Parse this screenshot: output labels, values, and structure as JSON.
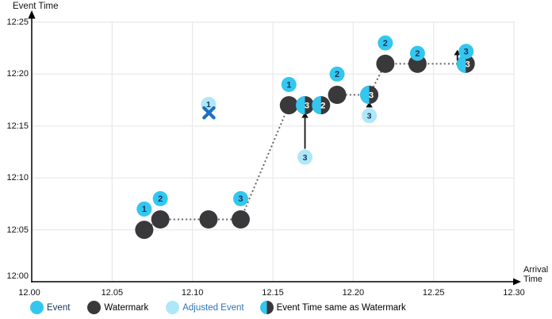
{
  "legend": {
    "items": [
      {
        "label": "Event",
        "type": "event"
      },
      {
        "label": "Watermark",
        "type": "watermark"
      },
      {
        "label": "Adjusted Event",
        "type": "adjusted-event"
      },
      {
        "label": "Event Time same as Watermark",
        "type": "event-time-same-as-watermark"
      }
    ]
  },
  "chart_data": {
    "type": "scatter",
    "title": "",
    "xlabel": "Arrival Time",
    "ylabel": "Event Time",
    "xlabel_lines": [
      "Arrival",
      "Time"
    ],
    "x_ticks": [
      "12.00",
      "12.05",
      "12.10",
      "12.15",
      "12.20",
      "12.25",
      "12.30"
    ],
    "y_ticks": [
      "12:00",
      "12:05",
      "12:10",
      "12:15",
      "12:20",
      "12:25"
    ],
    "x_tick_minutes": [
      0,
      5,
      10,
      15,
      20,
      25,
      30
    ],
    "y_tick_minutes": [
      0,
      5,
      10,
      15,
      20,
      25
    ],
    "grid": true,
    "legend_position": "bottom",
    "watermark_line": [
      [
        7,
        5
      ],
      [
        8,
        6
      ],
      [
        11,
        6
      ],
      [
        13,
        6
      ],
      [
        16,
        17
      ],
      [
        17,
        17
      ],
      [
        18,
        17
      ],
      [
        19,
        18
      ],
      [
        21,
        18
      ],
      [
        22,
        21
      ],
      [
        24,
        21
      ],
      [
        27,
        21
      ]
    ],
    "events": [
      {
        "label": "1",
        "arrival_min": 7,
        "event_time_min": 7,
        "kind": "event"
      },
      {
        "label": "2",
        "arrival_min": 8,
        "event_time_min": 8,
        "kind": "event"
      },
      {
        "label": "1",
        "arrival_min": 11,
        "event_time_min": 17,
        "kind": "dropped"
      },
      {
        "label": "3",
        "arrival_min": 13,
        "event_time_min": 8,
        "kind": "event"
      },
      {
        "label": "1",
        "arrival_min": 16,
        "event_time_min": 19,
        "kind": "event"
      },
      {
        "label": "3",
        "arrival_min": 17,
        "event_time_min": 12,
        "kind": "adjusted",
        "adjusted_to_min": 17
      },
      {
        "label": "2",
        "arrival_min": 18,
        "event_time_min": 17,
        "kind": "same_as_watermark"
      },
      {
        "label": "2",
        "arrival_min": 19,
        "event_time_min": 20,
        "kind": "event"
      },
      {
        "label": "3",
        "arrival_min": 21,
        "event_time_min": 16,
        "kind": "adjusted",
        "adjusted_to_min": 18
      },
      {
        "label": "2",
        "arrival_min": 22,
        "event_time_min": 23,
        "kind": "event"
      },
      {
        "label": "2",
        "arrival_min": 24,
        "event_time_min": 22,
        "kind": "event"
      },
      {
        "label": "3",
        "arrival_min": 27,
        "event_time_min": 21,
        "kind": "adjusted_up",
        "adjusted_to_min": 22
      }
    ],
    "colors": {
      "event": "#33C7EF",
      "adjusted_event": "#AEE7F8",
      "watermark": "#39393B",
      "number_navy": "#17365D",
      "number_white": "#FFFFFF",
      "dropped_x": "#1E6FC4",
      "grid": "#E8E8E8",
      "dotted_line": "#666666",
      "axis": "#000000",
      "arrow": "#111111"
    }
  }
}
